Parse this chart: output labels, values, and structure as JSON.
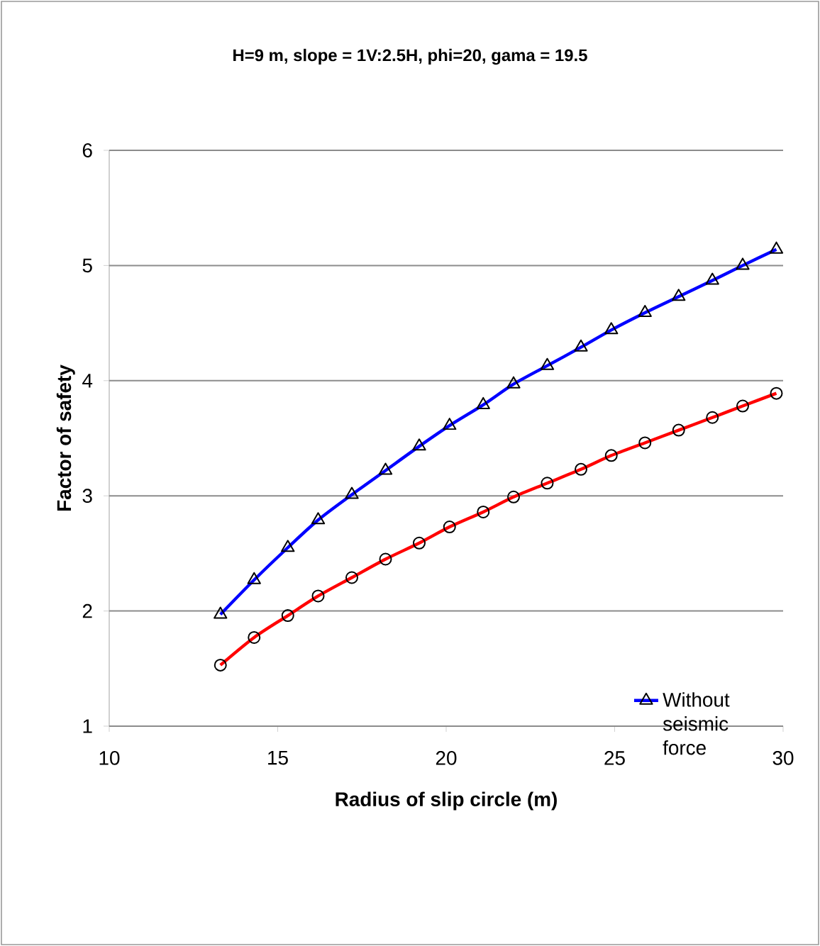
{
  "chart_data": {
    "type": "line",
    "title": "H=9 m, slope = 1V:2.5H, phi=20, gama = 19.5",
    "xlabel": "Radius of slip circle (m)",
    "ylabel": "Factor of safety",
    "x": [
      13.3,
      14.3,
      15.3,
      16.2,
      17.2,
      18.2,
      19.2,
      20.1,
      21.1,
      22.0,
      23.0,
      24.0,
      24.9,
      25.9,
      26.9,
      27.9,
      28.8,
      29.8
    ],
    "series": [
      {
        "name": "Without seismic force",
        "color": "#0000ff",
        "marker": "triangle",
        "values": [
          1.97,
          2.27,
          2.55,
          2.79,
          3.01,
          3.22,
          3.43,
          3.61,
          3.79,
          3.97,
          4.13,
          4.29,
          4.44,
          4.59,
          4.73,
          4.87,
          5.0,
          5.14
        ]
      },
      {
        "color": "#ff0000",
        "marker": "circle",
        "values": [
          1.53,
          1.77,
          1.96,
          2.13,
          2.29,
          2.45,
          2.59,
          2.73,
          2.86,
          2.99,
          3.11,
          3.23,
          3.35,
          3.46,
          3.57,
          3.68,
          3.78,
          3.89
        ]
      }
    ],
    "xlim": [
      10,
      30
    ],
    "xticks": [
      10,
      15,
      20,
      25,
      30
    ],
    "ylim": [
      1,
      6
    ],
    "yticks": [
      1,
      2,
      3,
      4,
      5,
      6
    ],
    "grid": "y",
    "legend": "bottom right"
  }
}
